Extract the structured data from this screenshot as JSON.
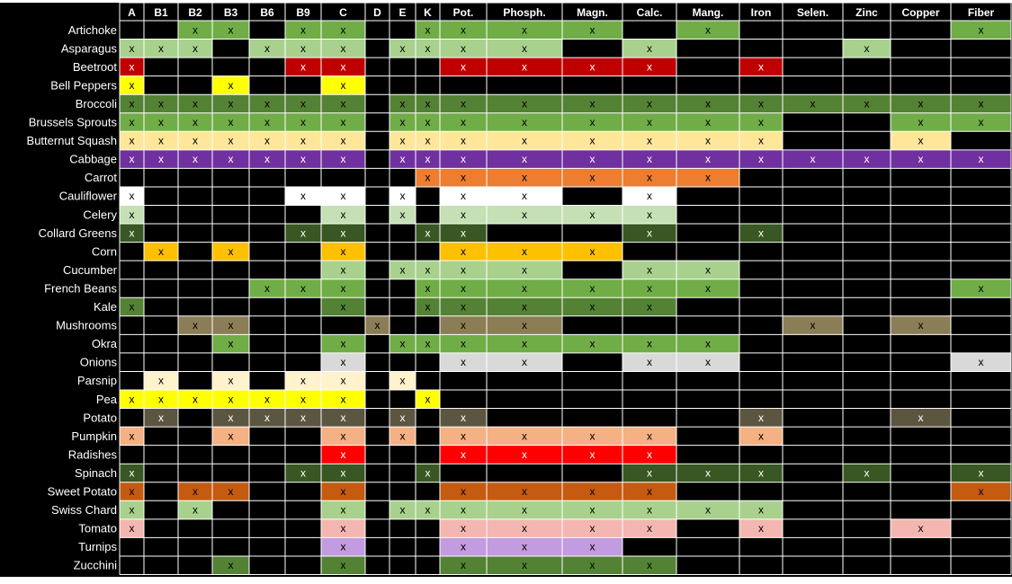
{
  "chart_data": {
    "type": "table",
    "columns": [
      "A",
      "B1",
      "B2",
      "B3",
      "B6",
      "B9",
      "C",
      "D",
      "E",
      "K",
      "Pot.",
      "Phosph.",
      "Magn.",
      "Calc.",
      "Mang.",
      "Iron",
      "Selen.",
      "Zinc",
      "Copper",
      "Fiber"
    ],
    "mark": "x",
    "colors": {
      "background": "#000000",
      "grid": "#ffffff",
      "text": "#ffffff",
      "mark_text": "#000000",
      "mark_text_on_dark": "#ffffff"
    },
    "rows": [
      {
        "label": "Artichoke",
        "color": "#70ad47",
        "columns": [
          "B2",
          "B3",
          "B9",
          "C",
          "K",
          "Pot.",
          "Phosph.",
          "Magn.",
          "Mang.",
          "Fiber"
        ]
      },
      {
        "label": "Asparagus",
        "color": "#a9d18e",
        "columns": [
          "A",
          "B1",
          "B2",
          "B6",
          "B9",
          "C",
          "E",
          "K",
          "Pot.",
          "Phosph.",
          "Calc.",
          "Zinc"
        ]
      },
      {
        "label": "Beetroot",
        "color": "#c00000",
        "columns": [
          "A",
          "B9",
          "C",
          "Pot.",
          "Phosph.",
          "Magn.",
          "Calc.",
          "Iron"
        ]
      },
      {
        "label": "Bell Peppers",
        "color": "#ffff00",
        "columns": [
          "A",
          "B3",
          "C"
        ]
      },
      {
        "label": "Broccoli",
        "color": "#548235",
        "columns": [
          "A",
          "B1",
          "B2",
          "B3",
          "B6",
          "B9",
          "C",
          "E",
          "K",
          "Pot.",
          "Phosph.",
          "Magn.",
          "Calc.",
          "Mang.",
          "Iron",
          "Selen.",
          "Zinc",
          "Copper",
          "Fiber"
        ]
      },
      {
        "label": "Brussels Sprouts",
        "color": "#70ad47",
        "columns": [
          "A",
          "B1",
          "B2",
          "B3",
          "B6",
          "B9",
          "C",
          "E",
          "K",
          "Pot.",
          "Phosph.",
          "Magn.",
          "Calc.",
          "Mang.",
          "Iron",
          "Copper",
          "Fiber"
        ]
      },
      {
        "label": "Butternut Squash",
        "color": "#ffe699",
        "columns": [
          "A",
          "B1",
          "B2",
          "B3",
          "B6",
          "B9",
          "C",
          "E",
          "K",
          "Pot.",
          "Phosph.",
          "Magn.",
          "Calc.",
          "Mang.",
          "Iron",
          "Copper"
        ]
      },
      {
        "label": "Cabbage",
        "color": "#7030a0",
        "columns": [
          "A",
          "B1",
          "B2",
          "B3",
          "B6",
          "B9",
          "C",
          "E",
          "K",
          "Pot.",
          "Phosph.",
          "Magn.",
          "Calc.",
          "Mang.",
          "Iron",
          "Selen.",
          "Zinc",
          "Copper",
          "Fiber"
        ]
      },
      {
        "label": "Carrot",
        "color": "#ed7d31",
        "columns": [
          "K",
          "Pot.",
          "Phosph.",
          "Magn.",
          "Calc.",
          "Mang."
        ]
      },
      {
        "label": "Cauliflower",
        "color": "#ffffff",
        "columns": [
          "A",
          "B9",
          "C",
          "E",
          "Pot.",
          "Phosph.",
          "Calc."
        ]
      },
      {
        "label": "Celery",
        "color": "#c5e0b4",
        "columns": [
          "A",
          "C",
          "E",
          "Pot.",
          "Phosph.",
          "Magn.",
          "Calc."
        ]
      },
      {
        "label": "Collard Greens",
        "color": "#385723",
        "columns": [
          "A",
          "B9",
          "C",
          "K",
          "Pot.",
          "Calc.",
          "Iron"
        ]
      },
      {
        "label": "Corn",
        "color": "#ffc000",
        "columns": [
          "B1",
          "B3",
          "C",
          "Pot.",
          "Phosph.",
          "Magn."
        ]
      },
      {
        "label": "Cucumber",
        "color": "#a9d18e",
        "columns": [
          "C",
          "E",
          "K",
          "Pot.",
          "Phosph.",
          "Calc.",
          "Mang."
        ]
      },
      {
        "label": "French Beans",
        "color": "#70ad47",
        "columns": [
          "B6",
          "B9",
          "C",
          "K",
          "Pot.",
          "Phosph.",
          "Magn.",
          "Calc.",
          "Mang.",
          "Fiber"
        ]
      },
      {
        "label": "Kale",
        "color": "#548235",
        "columns": [
          "A",
          "C",
          "K",
          "Pot.",
          "Phosph.",
          "Magn.",
          "Calc."
        ]
      },
      {
        "label": "Mushrooms",
        "color": "#8b7d55",
        "columns": [
          "B2",
          "B3",
          "D",
          "Pot.",
          "Phosph.",
          "Selen.",
          "Copper"
        ]
      },
      {
        "label": "Okra",
        "color": "#70ad47",
        "columns": [
          "B3",
          "C",
          "E",
          "K",
          "Pot.",
          "Phosph.",
          "Magn.",
          "Calc.",
          "Mang."
        ]
      },
      {
        "label": "Onions",
        "color": "#d9d9d9",
        "columns": [
          "C",
          "Pot.",
          "Phosph.",
          "Calc.",
          "Mang.",
          "Fiber"
        ]
      },
      {
        "label": "Parsnip",
        "color": "#fff2cc",
        "columns": [
          "B1",
          "B3",
          "B9",
          "C",
          "E"
        ]
      },
      {
        "label": "Pea",
        "color": "#ffff00",
        "columns": [
          "A",
          "B1",
          "B2",
          "B3",
          "B6",
          "B9",
          "C",
          "K"
        ]
      },
      {
        "label": "Potato",
        "color": "#5c5641",
        "columns": [
          "B1",
          "B3",
          "B6",
          "B9",
          "C",
          "E",
          "Pot.",
          "Iron",
          "Copper"
        ]
      },
      {
        "label": "Pumpkin",
        "color": "#f4b183",
        "columns": [
          "A",
          "B3",
          "C",
          "E",
          "Pot.",
          "Phosph.",
          "Magn.",
          "Calc.",
          "Iron"
        ]
      },
      {
        "label": "Radishes",
        "color": "#ff0000",
        "columns": [
          "C",
          "Pot.",
          "Phosph.",
          "Magn.",
          "Calc."
        ]
      },
      {
        "label": "Spinach",
        "color": "#385723",
        "columns": [
          "A",
          "B9",
          "C",
          "K",
          "Calc.",
          "Mang.",
          "Iron",
          "Zinc",
          "Fiber"
        ]
      },
      {
        "label": "Sweet Potato",
        "color": "#c55a11",
        "columns": [
          "A",
          "B2",
          "B3",
          "C",
          "Pot.",
          "Phosph.",
          "Magn.",
          "Calc.",
          "Fiber"
        ]
      },
      {
        "label": "Swiss Chard",
        "color": "#a9d18e",
        "columns": [
          "A",
          "B2",
          "C",
          "E",
          "K",
          "Pot.",
          "Phosph.",
          "Magn.",
          "Calc.",
          "Mang.",
          "Iron"
        ]
      },
      {
        "label": "Tomato",
        "color": "#f4b6b0",
        "columns": [
          "A",
          "C",
          "Pot.",
          "Phosph.",
          "Magn.",
          "Calc.",
          "Iron",
          "Copper"
        ]
      },
      {
        "label": "Turnips",
        "color": "#c39be0",
        "columns": [
          "C",
          "Pot.",
          "Phosph.",
          "Magn."
        ]
      },
      {
        "label": "Zucchini",
        "color": "#548235",
        "columns": [
          "B3",
          "C",
          "Pot.",
          "Phosph.",
          "Magn.",
          "Calc."
        ]
      }
    ]
  }
}
